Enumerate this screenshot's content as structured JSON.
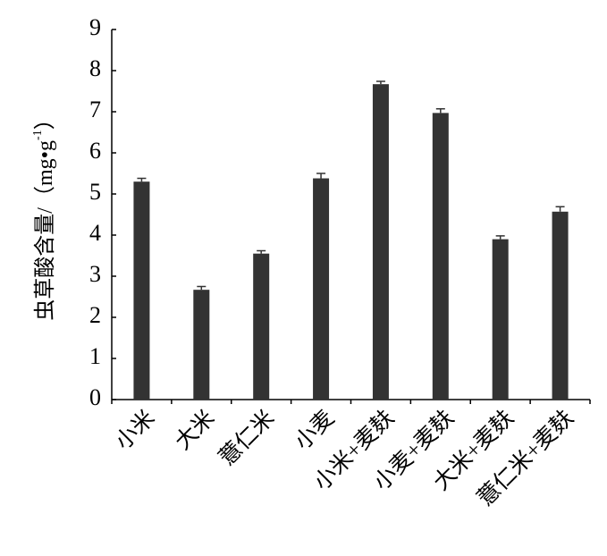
{
  "chart_data": {
    "type": "bar",
    "y_label": "虫草酸含量/（mg•g",
    "y_label_sup": "-1",
    "y_label_end": "）",
    "categories": [
      "小米",
      "大米",
      "薏仁米",
      "小麦",
      "小米+麦麸",
      "小麦+麦麸",
      "大米+麦麸",
      "薏仁米+麦麸"
    ],
    "values": [
      5.3,
      2.67,
      3.55,
      5.38,
      7.67,
      6.97,
      3.9,
      4.57
    ],
    "errors": [
      0.08,
      0.08,
      0.07,
      0.12,
      0.07,
      0.1,
      0.08,
      0.12
    ],
    "color": "#333333",
    "ylim": [
      0,
      9
    ],
    "yticks": [
      0,
      1,
      2,
      3,
      4,
      5,
      6,
      7,
      8,
      9
    ],
    "grid": false
  }
}
